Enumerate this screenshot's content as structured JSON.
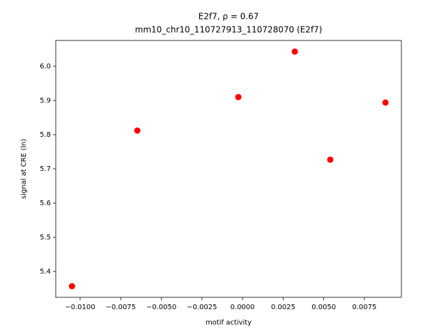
{
  "chart_data": {
    "type": "scatter",
    "title": "E2f7, ρ = 0.67",
    "subtitle": "mm10_chr10_110727913_110728070 (E2f7)",
    "x_label": "motif activity",
    "y_label": "signal at CRE (ln)",
    "color": "#ff0000",
    "x": [
      -0.0105,
      -0.00648,
      -0.00026,
      0.00322,
      0.0054,
      0.0088
    ],
    "values": [
      5.357,
      5.812,
      5.91,
      6.043,
      5.727,
      5.894
    ],
    "xlim": [
      -0.0115,
      0.00978
    ],
    "ylim": [
      5.3245,
      6.0755
    ],
    "xticks": [
      {
        "value": -0.01,
        "label": "−0.0100"
      },
      {
        "value": -0.0075,
        "label": "−0.0075"
      },
      {
        "value": -0.005,
        "label": "−0.0050"
      },
      {
        "value": -0.0025,
        "label": "−0.0025"
      },
      {
        "value": 0,
        "label": "0.0000"
      },
      {
        "value": 0.0025,
        "label": "0.0025"
      },
      {
        "value": 0.005,
        "label": "0.0050"
      },
      {
        "value": 0.0075,
        "label": "0.0075"
      }
    ],
    "yticks": [
      5.4,
      5.5,
      5.6,
      5.7,
      5.8,
      5.9,
      {
        "value": 6,
        "label": "6.0"
      }
    ]
  }
}
